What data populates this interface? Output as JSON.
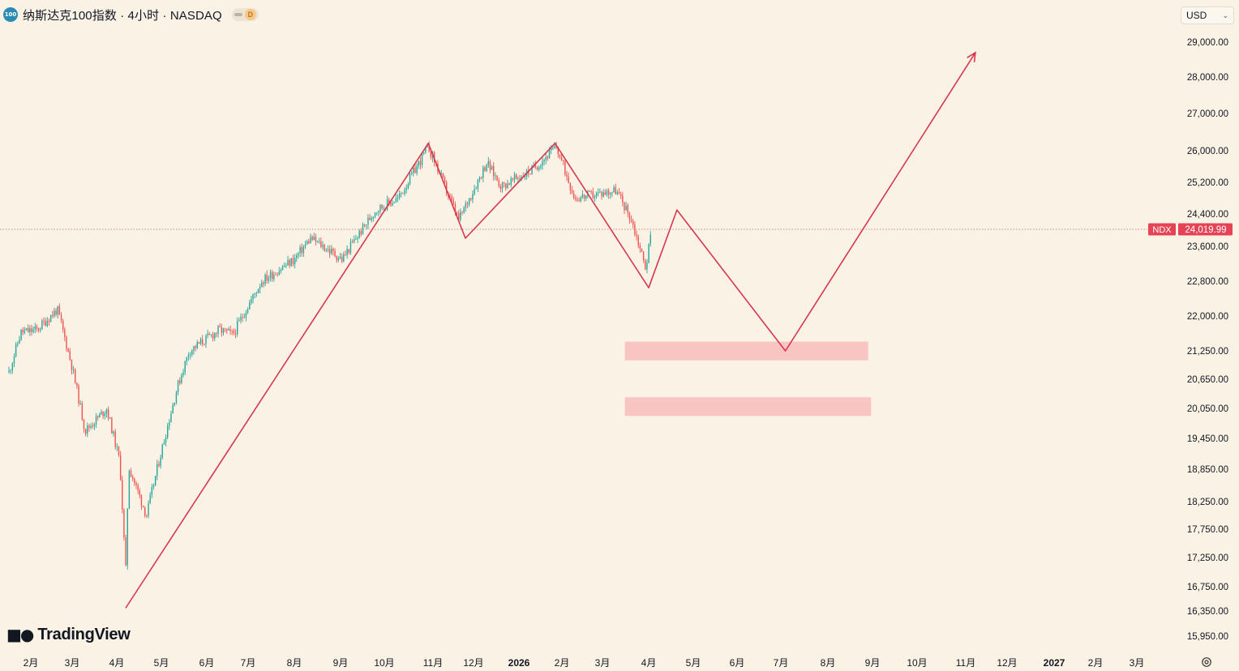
{
  "header": {
    "symbol_badge": "100",
    "title": "纳斯达克100指数 · 4小时 · NASDAQ",
    "badge_letter": "D"
  },
  "currency_selector": {
    "label": "USD"
  },
  "branding": {
    "name": "TradingView"
  },
  "price_label": {
    "ticker": "NDX",
    "value": "24,019.99",
    "price": 24019.99
  },
  "colors": {
    "background": "#f9f2e5",
    "up_candle": "#26a69a",
    "down_candle": "#ef5350",
    "drawing_line": "#d6374e",
    "zone_fill": "#f7b9b9",
    "price_tag": "#e54356"
  },
  "chart_data": {
    "type": "candlestick",
    "title": "纳斯达克100指数 · 4小时 · NASDAQ",
    "ylim": [
      15700,
      29400
    ],
    "y_ticks": [
      "29,000.00",
      "28,000.00",
      "27,000.00",
      "26,000.00",
      "25,200.00",
      "24,400.00",
      "23,600.00",
      "22,800.00",
      "22,000.00",
      "21,250.00",
      "20,650.00",
      "20,050.00",
      "19,450.00",
      "18,850.00",
      "18,250.00",
      "17,750.00",
      "17,250.00",
      "16,750.00",
      "16,350.00",
      "15,950.00"
    ],
    "x_ticks": [
      {
        "label": "2月",
        "bold": false
      },
      {
        "label": "3月",
        "bold": false
      },
      {
        "label": "4月",
        "bold": false
      },
      {
        "label": "5月",
        "bold": false
      },
      {
        "label": "6月",
        "bold": false
      },
      {
        "label": "7月",
        "bold": false
      },
      {
        "label": "8月",
        "bold": false
      },
      {
        "label": "9月",
        "bold": false
      },
      {
        "label": "10月",
        "bold": false
      },
      {
        "label": "11月",
        "bold": false
      },
      {
        "label": "12月",
        "bold": false
      },
      {
        "label": "2026",
        "bold": true
      },
      {
        "label": "2月",
        "bold": false
      },
      {
        "label": "3月",
        "bold": false
      },
      {
        "label": "4月",
        "bold": false
      },
      {
        "label": "5月",
        "bold": false
      },
      {
        "label": "6月",
        "bold": false
      },
      {
        "label": "7月",
        "bold": false
      },
      {
        "label": "8月",
        "bold": false
      },
      {
        "label": "9月",
        "bold": false
      },
      {
        "label": "10月",
        "bold": false
      },
      {
        "label": "11月",
        "bold": false
      },
      {
        "label": "12月",
        "bold": false
      },
      {
        "label": "2027",
        "bold": true
      },
      {
        "label": "2月",
        "bold": false
      },
      {
        "label": "3月",
        "bold": false
      }
    ],
    "price_path": [
      {
        "date": "2025-01-10",
        "close": 20800
      },
      {
        "date": "2025-01-22",
        "close": 21650
      },
      {
        "date": "2025-02-05",
        "close": 21700
      },
      {
        "date": "2025-02-19",
        "close": 22150
      },
      {
        "date": "2025-03-01",
        "close": 20900
      },
      {
        "date": "2025-03-10",
        "close": 19600
      },
      {
        "date": "2025-03-25",
        "close": 20050
      },
      {
        "date": "2025-04-03",
        "close": 19000
      },
      {
        "date": "2025-04-07",
        "close": 17000
      },
      {
        "date": "2025-04-09",
        "close": 18900
      },
      {
        "date": "2025-04-21",
        "close": 18000
      },
      {
        "date": "2025-05-12",
        "close": 20500
      },
      {
        "date": "2025-05-20",
        "close": 21250
      },
      {
        "date": "2025-06-10",
        "close": 21700
      },
      {
        "date": "2025-06-20",
        "close": 21600
      },
      {
        "date": "2025-07-10",
        "close": 22800
      },
      {
        "date": "2025-08-01",
        "close": 23300
      },
      {
        "date": "2025-08-12",
        "close": 23800
      },
      {
        "date": "2025-09-02",
        "close": 23300
      },
      {
        "date": "2025-09-25",
        "close": 24500
      },
      {
        "date": "2025-10-10",
        "close": 24800
      },
      {
        "date": "2025-10-29",
        "close": 26100
      },
      {
        "date": "2025-11-05",
        "close": 25500
      },
      {
        "date": "2025-11-20",
        "close": 24250
      },
      {
        "date": "2025-12-10",
        "close": 25700
      },
      {
        "date": "2025-12-20",
        "close": 25100
      },
      {
        "date": "2026-01-10",
        "close": 25500
      },
      {
        "date": "2026-01-28",
        "close": 26100
      },
      {
        "date": "2026-02-10",
        "close": 24800
      },
      {
        "date": "2026-02-25",
        "close": 24900
      },
      {
        "date": "2026-03-10",
        "close": 25000
      },
      {
        "date": "2026-03-20",
        "close": 24300
      },
      {
        "date": "2026-03-30",
        "close": 23100
      },
      {
        "date": "2026-04-03",
        "close": 24019.99
      }
    ],
    "drawing_path": [
      {
        "date": "2025-04-07",
        "price": 16400
      },
      {
        "date": "2025-10-29",
        "price": 26200
      },
      {
        "date": "2025-11-25",
        "price": 23800
      },
      {
        "date": "2026-01-27",
        "price": 26200
      },
      {
        "date": "2026-04-01",
        "price": 22650
      },
      {
        "date": "2026-04-20",
        "price": 24500
      },
      {
        "date": "2026-07-04",
        "price": 21250
      },
      {
        "date": "2026-11-08",
        "price": 28700
      }
    ],
    "zones": [
      {
        "from": "2026-03-16",
        "to": "2026-08-29",
        "high": 21450,
        "low": 21050
      },
      {
        "from": "2026-03-16",
        "to": "2026-08-31",
        "high": 20280,
        "low": 19900
      }
    ],
    "last_price": 24019.99,
    "grid": false
  }
}
